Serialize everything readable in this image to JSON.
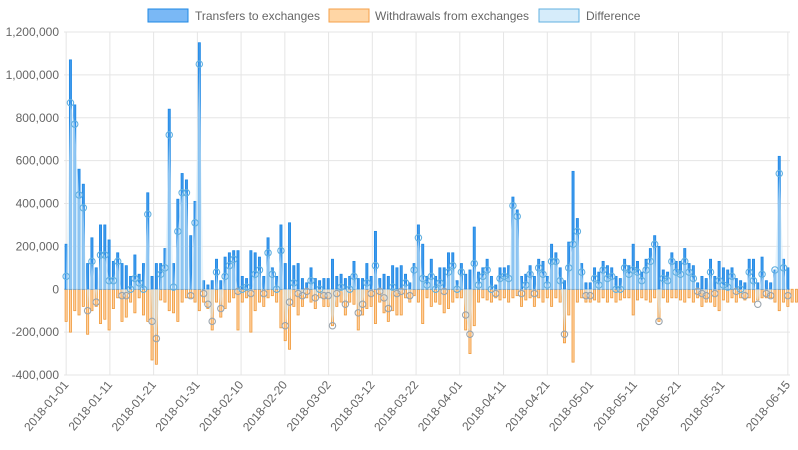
{
  "chart_data": {
    "type": "bar",
    "legend": {
      "position": "top",
      "entries": [
        {
          "name": "Transfers to exchanges",
          "fill": "#7ab8f5",
          "stroke": "#1e88e5"
        },
        {
          "name": "Withdrawals from exchanges",
          "fill": "#ffd6a5",
          "stroke": "#f5a04a"
        },
        {
          "name": "Difference",
          "fill": "#d6ecfa",
          "stroke": "#62b0e0"
        }
      ]
    },
    "colors": {
      "transfers_fill": "#3f99ec",
      "transfers_stroke": "#1e88e5",
      "withdrawals_fill": "#ffd0a0",
      "withdrawals_stroke": "#f09a3a",
      "difference_fill": "#d6ecfa",
      "difference_stroke": "#62b0e0",
      "difference_point_negative": "#9aa4ad",
      "grid": "#e5e5e5"
    },
    "grid": true,
    "ylim": [
      -400000,
      1200000
    ],
    "y_ticks": [
      "1,200,000",
      "1,000,000",
      "800,000",
      "600,000",
      "400,000",
      "200,000",
      "0",
      "-200,000",
      "-400,000"
    ],
    "y_tick_values": [
      1200000,
      1000000,
      800000,
      600000,
      400000,
      200000,
      0,
      -200000,
      -400000
    ],
    "x_tick_labels": [
      "2018-01-01",
      "2018-01-11",
      "2018-01-21",
      "2018-01-31",
      "2018-02-10",
      "2018-02-20",
      "2018-03-02",
      "2018-03-12",
      "2018-03-22",
      "2018-04-01",
      "2018-04-11",
      "2018-04-21",
      "2018-05-01",
      "2018-05-11",
      "2018-05-21",
      "2018-05-31",
      "2018-06-15"
    ],
    "x_start": "2018-01-01",
    "x_end": "2018-06-15",
    "series": [
      {
        "name": "Transfers to exchanges",
        "values": [
          210000,
          1070000,
          860000,
          560000,
          490000,
          120000,
          240000,
          100000,
          300000,
          300000,
          230000,
          130000,
          170000,
          120000,
          110000,
          60000,
          160000,
          70000,
          120000,
          450000,
          60000,
          120000,
          120000,
          190000,
          840000,
          120000,
          420000,
          540000,
          510000,
          250000,
          410000,
          1150000,
          40000,
          20000,
          40000,
          140000,
          40000,
          150000,
          170000,
          180000,
          180000,
          60000,
          50000,
          180000,
          170000,
          150000,
          60000,
          240000,
          100000,
          60000,
          300000,
          120000,
          310000,
          110000,
          120000,
          50000,
          30000,
          100000,
          50000,
          40000,
          50000,
          50000,
          140000,
          60000,
          70000,
          50000,
          60000,
          130000,
          50000,
          50000,
          120000,
          60000,
          270000,
          50000,
          70000,
          60000,
          110000,
          100000,
          110000,
          70000,
          30000,
          120000,
          300000,
          210000,
          60000,
          140000,
          60000,
          100000,
          100000,
          170000,
          170000,
          40000,
          120000,
          70000,
          90000,
          290000,
          80000,
          100000,
          140000,
          60000,
          20000,
          100000,
          100000,
          110000,
          430000,
          370000,
          60000,
          70000,
          110000,
          60000,
          140000,
          130000,
          60000,
          210000,
          170000,
          100000,
          40000,
          220000,
          550000,
          330000,
          120000,
          30000,
          30000,
          100000,
          80000,
          130000,
          110000,
          100000,
          60000,
          50000,
          140000,
          110000,
          210000,
          130000,
          80000,
          140000,
          190000,
          250000,
          200000,
          90000,
          80000,
          170000,
          130000,
          130000,
          190000,
          120000,
          110000,
          30000,
          60000,
          50000,
          140000,
          60000,
          130000,
          100000,
          90000,
          100000,
          50000,
          40000,
          30000,
          140000,
          140000,
          30000,
          150000,
          40000,
          30000,
          90000,
          620000,
          140000,
          100000
        ],
        "fill": "#3f99ec"
      },
      {
        "name": "Withdrawals from exchanges",
        "values": [
          -150000,
          -200000,
          -100000,
          -120000,
          -80000,
          -210000,
          -100000,
          -80000,
          -160000,
          -140000,
          -190000,
          -90000,
          -40000,
          -150000,
          -130000,
          -60000,
          -110000,
          -40000,
          -120000,
          -150000,
          -330000,
          -350000,
          -50000,
          -60000,
          -100000,
          -110000,
          -150000,
          -60000,
          -40000,
          -40000,
          -60000,
          -100000,
          -60000,
          -90000,
          -190000,
          -60000,
          -130000,
          -90000,
          -60000,
          -40000,
          -190000,
          -60000,
          -40000,
          -200000,
          -100000,
          -60000,
          -80000,
          -40000,
          -30000,
          -60000,
          -180000,
          -240000,
          -280000,
          -80000,
          -120000,
          -80000,
          -40000,
          -60000,
          -90000,
          -40000,
          -80000,
          -80000,
          -170000,
          -80000,
          -60000,
          -120000,
          -60000,
          -70000,
          -190000,
          -120000,
          -90000,
          -80000,
          -160000,
          -60000,
          -110000,
          -150000,
          -100000,
          -120000,
          -120000,
          -40000,
          -60000,
          -30000,
          -60000,
          -160000,
          -40000,
          -80000,
          -60000,
          -70000,
          -110000,
          -90000,
          -60000,
          -40000,
          -40000,
          -190000,
          -300000,
          -170000,
          -60000,
          -40000,
          -50000,
          -60000,
          -40000,
          -50000,
          -40000,
          -60000,
          -40000,
          -30000,
          -80000,
          -50000,
          -40000,
          -80000,
          -40000,
          -60000,
          -40000,
          -80000,
          -40000,
          -60000,
          -250000,
          -120000,
          -340000,
          -60000,
          -40000,
          -60000,
          -60000,
          -50000,
          -60000,
          -40000,
          -60000,
          -40000,
          -60000,
          -50000,
          -40000,
          -40000,
          -120000,
          -50000,
          -40000,
          -50000,
          -60000,
          -40000,
          -150000,
          -40000,
          -60000,
          -40000,
          -40000,
          -50000,
          -60000,
          -40000,
          -60000,
          -40000,
          -80000,
          -60000,
          -60000,
          -80000,
          -100000,
          -50000,
          -60000,
          -40000,
          -60000,
          -40000,
          -50000,
          -40000,
          -60000,
          -50000,
          -40000,
          -40000,
          -40000,
          -60000,
          -100000,
          -60000,
          -80000,
          -60000,
          -60000,
          -60000,
          -40000,
          -130000,
          -40000
        ],
        "fill": "#ffd0a0"
      },
      {
        "name": "Difference",
        "values": [
          60000,
          870000,
          770000,
          440000,
          380000,
          -100000,
          130000,
          -60000,
          160000,
          160000,
          40000,
          40000,
          130000,
          -30000,
          -30000,
          0,
          50000,
          30000,
          0,
          350000,
          -150000,
          -230000,
          70000,
          100000,
          720000,
          10000,
          270000,
          450000,
          450000,
          -30000,
          310000,
          1050000,
          -20000,
          -70000,
          -150000,
          80000,
          -90000,
          60000,
          110000,
          140000,
          -10000,
          0,
          10000,
          -20000,
          70000,
          90000,
          -20000,
          170000,
          70000,
          0,
          180000,
          -170000,
          -60000,
          30000,
          -20000,
          -30000,
          -10000,
          40000,
          -40000,
          0,
          -30000,
          -30000,
          -170000,
          -20000,
          10000,
          -70000,
          0,
          60000,
          -110000,
          -70000,
          30000,
          -20000,
          110000,
          -10000,
          -40000,
          -90000,
          10000,
          -20000,
          -10000,
          30000,
          -30000,
          90000,
          240000,
          50000,
          20000,
          60000,
          0,
          30000,
          -10000,
          80000,
          110000,
          0,
          80000,
          -120000,
          -210000,
          120000,
          20000,
          60000,
          90000,
          0,
          -20000,
          50000,
          60000,
          50000,
          390000,
          340000,
          -20000,
          20000,
          70000,
          -20000,
          100000,
          70000,
          20000,
          130000,
          130000,
          40000,
          -210000,
          100000,
          210000,
          270000,
          80000,
          -30000,
          -30000,
          50000,
          20000,
          90000,
          50000,
          60000,
          0,
          0,
          100000,
          70000,
          90000,
          80000,
          40000,
          90000,
          130000,
          210000,
          -150000,
          50000,
          40000,
          130000,
          80000,
          70000,
          130000,
          80000,
          50000,
          -10000,
          -20000,
          -30000,
          80000,
          -20000,
          40000,
          20000,
          10000,
          60000,
          -10000,
          0,
          -30000,
          80000,
          40000,
          -70000,
          70000,
          -20000,
          -30000,
          90000,
          540000,
          100000,
          -30000
        ],
        "fill": "#d6ecfa"
      }
    ]
  }
}
